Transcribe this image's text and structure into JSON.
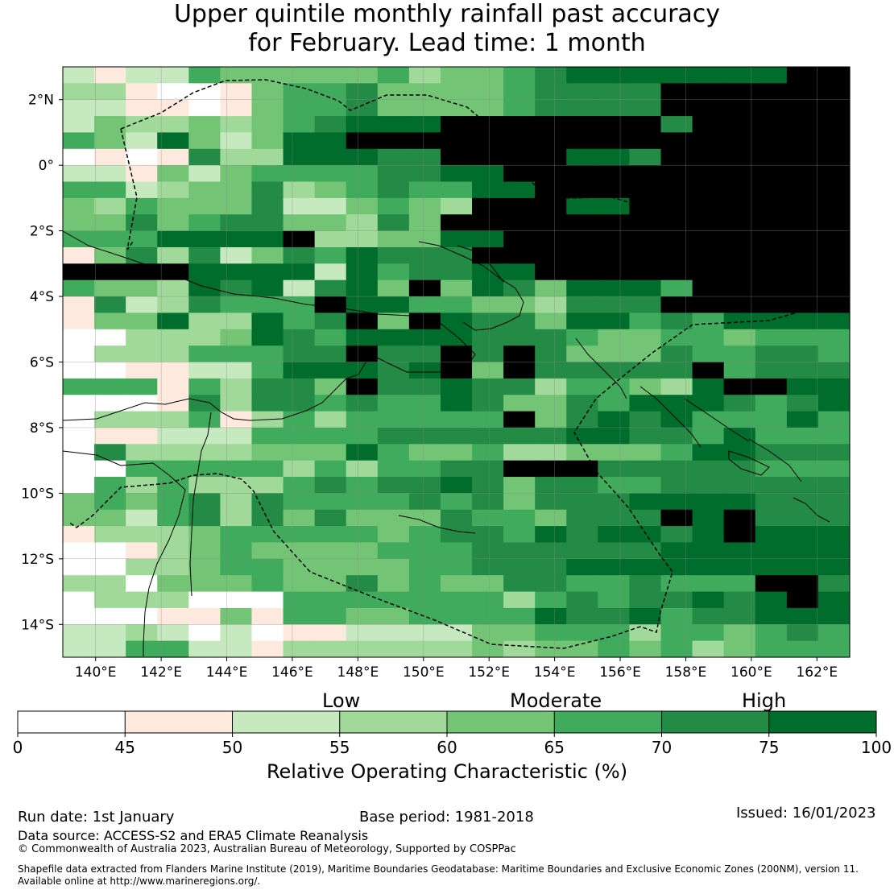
{
  "title": {
    "line1": "Upper quintile monthly rainfall past accuracy",
    "line2": "for February. Lead time: 1 month"
  },
  "map": {
    "lon_range": [
      139,
      163
    ],
    "lat_range": [
      -15,
      3
    ],
    "lon_ticks": [
      "140°E",
      "142°E",
      "144°E",
      "146°E",
      "148°E",
      "150°E",
      "152°E",
      "154°E",
      "156°E",
      "158°E",
      "160°E",
      "162°E"
    ],
    "lat_ticks": [
      "2°N",
      "0°",
      "2°S",
      "4°S",
      "6°S",
      "8°S",
      "10°S",
      "12°S",
      "14°S"
    ],
    "grid_rows": [
      "2122544444534456777777788",
      "3310014556444456666888888",
      "2211014556444456666888888",
      "2433434567778888888688888",
      "5427424778888888888988888",
      "0101633777668888776888888",
      "2214245555667788888888888",
      "5523446345655778888888888",
      "4354446224543888778888888",
      "4464566443648888888888888",
      "5557777833447788888888888",
      "1463624657666888888888888",
      "8888777727566778888888888",
      "5443767267484764777588888",
      "1623655587755443666888888",
      "1447337568487664775657777",
      "0033347657777666544554555",
      "0333555668669686444655665",
      "0011225777679486666685666",
      "5551536648667663554378877",
      "0001636656557644657776567",
      "0333513535555584676755575",
      "0112225555666666776657555",
      "0633334447544533444577666",
      "0055555353556688866666555",
      "0535333565667646655666666",
      "4545636555565646667777666",
      "4425636464446554666878666",
      "1333455555456657677678777",
      "0013454444555666666777777",
      "0033455444455666777777777",
      "3304445446454466556555886",
      "0333000555555535656676787",
      "0001141554455557667566777",
      "2232020112222445553554565",
      "2255221333333434454534555"
    ]
  },
  "colorbar": {
    "categories": [
      "Low",
      "Moderate",
      "High"
    ],
    "tick_labels": [
      "0",
      "45",
      "50",
      "55",
      "60",
      "65",
      "70",
      "75",
      "100"
    ],
    "colors": [
      "#ffffff",
      "#fee9df",
      "#c7e9c0",
      "#a1d99b",
      "#74c476",
      "#41ab5d",
      "#238b45",
      "#006d2c"
    ],
    "label": "Relative Operating Characteristic (%)"
  },
  "footer": {
    "run_date": "Run date: 1st January",
    "base_period": "Base period: 1981-2018",
    "issued": "Issued: 16/01/2023",
    "data_source": "Data source: ACCESS-S2 and ERA5 Climate Reanalysis",
    "copyright": "© Commonwealth of Australia 2023, Australian Bureau of Meteorology, Supported by COSPPac",
    "shapefile_line1": "Shapefile data extracted from Flanders Marine Institute (2019), Maritime Boundaries Geodatabase: Maritime Boundaries and Exclusive Economic Zones (200NM), version 11.",
    "shapefile_line2": "Available online at http://www.marineregions.org/."
  }
}
